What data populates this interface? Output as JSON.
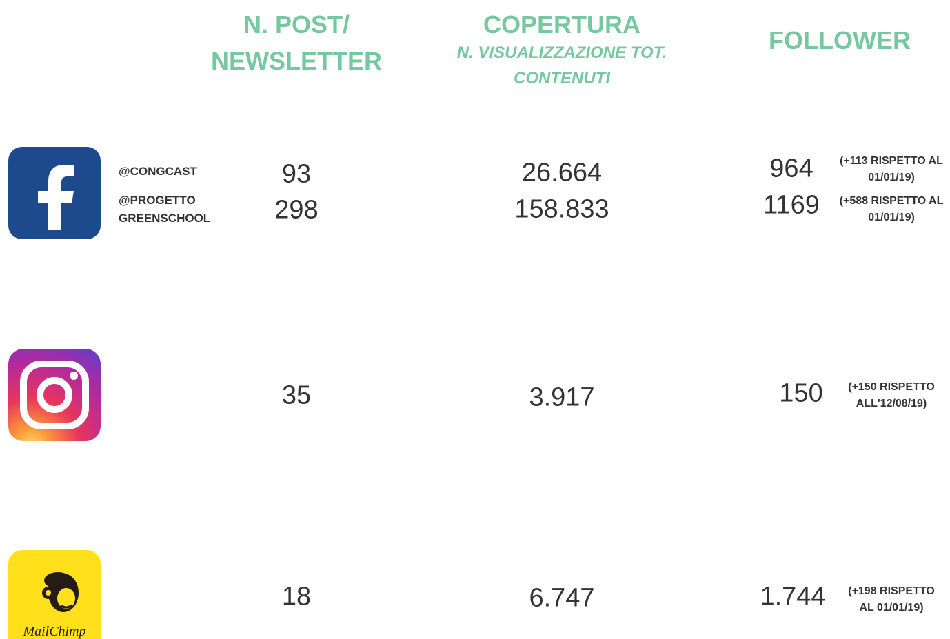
{
  "header": {
    "posts": [
      "N. POST/",
      "NEWSLETTER"
    ],
    "reach": {
      "title": "COPERTURA",
      "subtitle": "N. VISUALIZZAZIONE TOT. CONTENUTI"
    },
    "followers": "FOLLOWER"
  },
  "rows": [
    {
      "platform": "facebook",
      "accounts": [
        {
          "name": "@CONGCAST",
          "posts": "93",
          "reach": "26.664",
          "followers": "964",
          "delta": "(+113 RISPETTO AL 01/01/19)"
        },
        {
          "name": "@PROGETTO GREENSCHOOL",
          "posts": "298",
          "reach": "158.833",
          "followers": "1169",
          "delta": "(+588 RISPETTO AL 01/01/19)"
        }
      ]
    },
    {
      "platform": "instagram",
      "posts": "35",
      "reach": "3.917",
      "followers": "150",
      "delta": "(+150 RISPETTO ALL'12/08/19)"
    },
    {
      "platform": "mailchimp",
      "logo_text": "MailChimp",
      "posts": "18",
      "reach": "6.747",
      "followers": "1.744",
      "delta": "(+198 RISPETTO AL 01/01/19)"
    }
  ]
}
